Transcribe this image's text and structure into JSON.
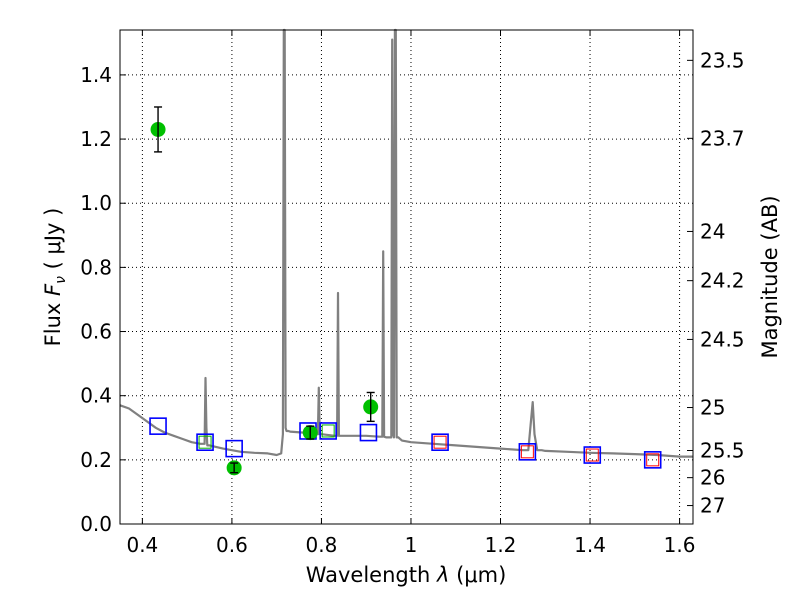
{
  "chart_data": {
    "type": "scatter",
    "xlabel_text": "Wavelength",
    "xlabel_symbol": "λ",
    "xlabel_unit": "(μm)",
    "ylabel_text": "Flux",
    "ylabel_symbol": "F",
    "ylabel_sub": "ν",
    "ylabel_unit": "( μJy )",
    "y2label": "Magnitude (AB)",
    "xlim": [
      0.35,
      1.63
    ],
    "ylim": [
      0.0,
      1.54
    ],
    "xticks": [
      0.4,
      0.6,
      0.8,
      1.0,
      1.2,
      1.4,
      1.6
    ],
    "xtick_labels": [
      "0.4",
      "0.6",
      "0.8",
      "1",
      "1.2",
      "1.4",
      "1.6"
    ],
    "yticks": [
      0.0,
      0.2,
      0.4,
      0.6,
      0.8,
      1.0,
      1.2,
      1.4
    ],
    "ytick_labels": [
      "0.0",
      "0.2",
      "0.4",
      "0.6",
      "0.8",
      "1.0",
      "1.2",
      "1.4"
    ],
    "y2ticks": [
      {
        "label": "23.5",
        "flux": 1.4454
      },
      {
        "label": "23.7",
        "flux": 1.2023
      },
      {
        "label": "24",
        "flux": 0.912
      },
      {
        "label": "24.2",
        "flux": 0.7586
      },
      {
        "label": "24.5",
        "flux": 0.5754
      },
      {
        "label": "25",
        "flux": 0.3631
      },
      {
        "label": "25.5",
        "flux": 0.2291
      },
      {
        "label": "26",
        "flux": 0.1445
      },
      {
        "label": "27",
        "flux": 0.0575
      }
    ],
    "grid": true,
    "colors": {
      "spectrum": "#808080",
      "observed": "#00c000",
      "error_bar": "#000000",
      "model_box": "#0000ff",
      "model_box_inner_optical": "#00b000",
      "model_box_inner_nir": "#ff0000"
    },
    "series": [
      {
        "name": "model spectrum",
        "kind": "line",
        "x": [
          0.35,
          0.37,
          0.39,
          0.41,
          0.43,
          0.45,
          0.47,
          0.49,
          0.51,
          0.53,
          0.539,
          0.541,
          0.543,
          0.545,
          0.55,
          0.58,
          0.6,
          0.62,
          0.65,
          0.68,
          0.7,
          0.71,
          0.714,
          0.716,
          0.718,
          0.72,
          0.722,
          0.726,
          0.73,
          0.76,
          0.78,
          0.792,
          0.794,
          0.796,
          0.8,
          0.83,
          0.835,
          0.837,
          0.839,
          0.845,
          0.88,
          0.9,
          0.93,
          0.936,
          0.938,
          0.94,
          0.945,
          0.952,
          0.956,
          0.958,
          0.96,
          0.962,
          0.964,
          0.966,
          0.968,
          0.97,
          0.972,
          0.98,
          1.0,
          1.05,
          1.1,
          1.15,
          1.2,
          1.25,
          1.262,
          1.272,
          1.276,
          1.282,
          1.292,
          1.3,
          1.35,
          1.4,
          1.45,
          1.5,
          1.55,
          1.6,
          1.63
        ],
        "y": [
          0.37,
          0.36,
          0.34,
          0.32,
          0.3,
          0.285,
          0.275,
          0.265,
          0.255,
          0.25,
          0.25,
          0.455,
          0.3,
          0.245,
          0.245,
          0.235,
          0.23,
          0.225,
          0.222,
          0.22,
          0.215,
          0.22,
          0.28,
          1.54,
          1.54,
          0.3,
          0.29,
          0.29,
          0.288,
          0.285,
          0.285,
          0.28,
          0.425,
          0.28,
          0.28,
          0.275,
          0.275,
          0.72,
          0.275,
          0.275,
          0.275,
          0.275,
          0.272,
          0.272,
          0.85,
          0.272,
          0.27,
          0.27,
          0.27,
          1.51,
          0.28,
          0.27,
          1.54,
          1.54,
          0.27,
          0.27,
          0.27,
          0.26,
          0.255,
          0.25,
          0.245,
          0.24,
          0.235,
          0.23,
          0.23,
          0.38,
          0.28,
          0.23,
          0.23,
          0.228,
          0.225,
          0.222,
          0.22,
          0.218,
          0.215,
          0.21,
          0.21
        ]
      },
      {
        "name": "observed photometry",
        "kind": "scatter_errorbar",
        "points": [
          {
            "x": 0.435,
            "y": 1.23,
            "err": 0.07
          },
          {
            "x": 0.605,
            "y": 0.175,
            "err": 0.015
          },
          {
            "x": 0.775,
            "y": 0.285,
            "err": 0.02
          },
          {
            "x": 0.91,
            "y": 0.365,
            "err": 0.045
          }
        ]
      },
      {
        "name": "model photometry",
        "kind": "open_squares",
        "points": [
          {
            "x": 0.435,
            "y": 0.305,
            "inner": ""
          },
          {
            "x": 0.54,
            "y": 0.255,
            "inner": "optical"
          },
          {
            "x": 0.605,
            "y": 0.235,
            "inner": ""
          },
          {
            "x": 0.77,
            "y": 0.29,
            "inner": ""
          },
          {
            "x": 0.815,
            "y": 0.29,
            "inner": "optical"
          },
          {
            "x": 0.905,
            "y": 0.285,
            "inner": ""
          },
          {
            "x": 1.065,
            "y": 0.255,
            "inner": "nir"
          },
          {
            "x": 1.26,
            "y": 0.225,
            "inner": "nir"
          },
          {
            "x": 1.405,
            "y": 0.215,
            "inner": "nir"
          },
          {
            "x": 1.54,
            "y": 0.2,
            "inner": "nir"
          }
        ]
      }
    ]
  }
}
